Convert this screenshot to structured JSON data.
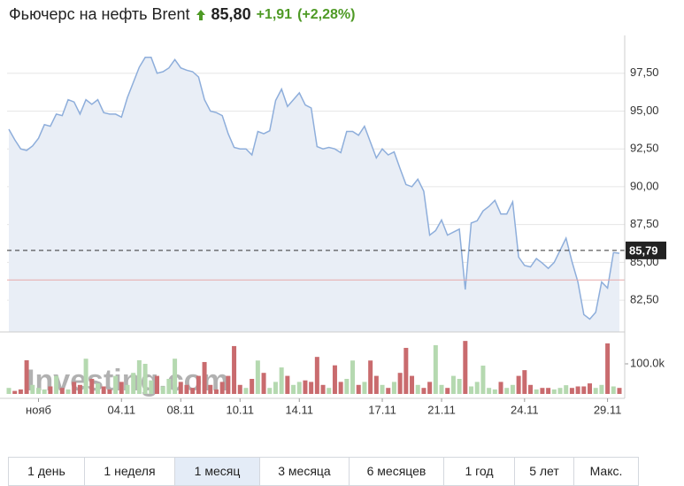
{
  "header": {
    "price": "85,80",
    "change": "+1,91",
    "change_pct": "(+2,28%)",
    "watermark": "Investing.com"
  },
  "chart_data": [
    {
      "type": "area",
      "title": "Фьючерс на нефть Brent",
      "color": "#8eaedb",
      "fill": "#e9eef6",
      "categories": [
        null,
        null,
        null,
        null,
        null,
        "нояб",
        null,
        null,
        null,
        null,
        null,
        null,
        null,
        null,
        null,
        null,
        null,
        null,
        null,
        "04.11",
        null,
        null,
        null,
        null,
        null,
        null,
        null,
        null,
        null,
        "08.11",
        null,
        null,
        null,
        null,
        null,
        null,
        null,
        null,
        null,
        "10.11",
        null,
        null,
        null,
        null,
        null,
        null,
        null,
        null,
        null,
        "14.11",
        null,
        null,
        null,
        null,
        null,
        null,
        null,
        null,
        null,
        null,
        null,
        null,
        null,
        "17.11",
        null,
        null,
        null,
        null,
        null,
        null,
        null,
        null,
        null,
        "21.11",
        null,
        null,
        null,
        null,
        null,
        null,
        null,
        null,
        null,
        null,
        null,
        null,
        null,
        "24.11",
        null,
        null,
        null,
        null,
        null,
        null,
        null,
        null,
        null,
        null,
        null,
        null,
        null,
        "29.11",
        null,
        null
      ],
      "values": [
        93.8,
        93.1,
        92.5,
        92.4,
        92.7,
        93.2,
        94.1,
        94.0,
        94.8,
        94.7,
        95.75,
        95.6,
        94.8,
        95.75,
        95.45,
        95.75,
        94.9,
        94.8,
        94.8,
        94.6,
        95.9,
        96.9,
        97.9,
        98.55,
        98.55,
        97.5,
        97.6,
        97.85,
        98.4,
        97.85,
        97.7,
        97.6,
        97.25,
        95.75,
        95.0,
        94.9,
        94.7,
        93.5,
        92.6,
        92.5,
        92.5,
        92.1,
        93.65,
        93.5,
        93.7,
        95.7,
        96.45,
        95.3,
        95.75,
        96.2,
        95.4,
        95.2,
        92.65,
        92.5,
        92.6,
        92.5,
        92.25,
        93.65,
        93.65,
        93.4,
        94.0,
        92.95,
        91.9,
        92.5,
        92.1,
        92.3,
        91.2,
        90.15,
        90.0,
        90.5,
        89.7,
        86.8,
        87.1,
        87.8,
        86.8,
        87.0,
        87.2,
        83.2,
        87.6,
        87.75,
        88.4,
        88.7,
        89.1,
        88.2,
        88.2,
        89.0,
        85.35,
        84.8,
        84.7,
        85.25,
        84.95,
        84.6,
        85.0,
        85.8,
        86.6,
        85.05,
        83.7,
        81.55,
        81.25,
        81.7,
        83.7,
        83.3,
        85.65,
        85.6
      ],
      "ylim": [
        80.4,
        100
      ],
      "yticks": [
        {
          "value": 82.5,
          "label": "82,50"
        },
        {
          "value": 85,
          "label": "85,00"
        },
        {
          "value": 87.5,
          "label": "87,50"
        },
        {
          "value": 90,
          "label": "90,00"
        },
        {
          "value": 92.5,
          "label": "92,50"
        },
        {
          "value": 95,
          "label": "95,00"
        },
        {
          "value": 97.5,
          "label": "97,50"
        }
      ],
      "grid": true,
      "last_value": {
        "value": 85.79,
        "label": "85,79"
      },
      "reference_line": {
        "value": 83.84,
        "color": "#e8a8a8"
      }
    },
    {
      "type": "bar",
      "up_color": "#b5d9b0",
      "down_color": "#c96b6e",
      "values": [
        20000,
        10000,
        15000,
        112000,
        30000,
        20000,
        15000,
        25000,
        60000,
        20000,
        15000,
        40000,
        30000,
        117000,
        50000,
        35000,
        25000,
        15000,
        60000,
        40000,
        30000,
        70000,
        112000,
        100000,
        45000,
        60000,
        25000,
        50000,
        117000,
        40000,
        30000,
        20000,
        60000,
        106000,
        30000,
        15000,
        40000,
        60000,
        159000,
        30000,
        20000,
        50000,
        111000,
        70000,
        20000,
        40000,
        88000,
        60000,
        30000,
        40000,
        45000,
        40000,
        123000,
        30000,
        20000,
        95000,
        40000,
        50000,
        111000,
        30000,
        40000,
        111000,
        60000,
        30000,
        20000,
        40000,
        70000,
        153000,
        60000,
        30000,
        20000,
        40000,
        162000,
        30000,
        20000,
        60000,
        50000,
        176000,
        25000,
        40000,
        94000,
        20000,
        15000,
        40000,
        20000,
        30000,
        60000,
        79000,
        30000,
        15000,
        20000,
        20000,
        15000,
        20000,
        29000,
        20000,
        25000,
        25000,
        35000,
        20000,
        30000,
        168000,
        25000,
        20000
      ],
      "ylim": [
        0,
        197000
      ],
      "yticks": [
        {
          "value": 100000,
          "label": "100.0k"
        }
      ]
    }
  ],
  "range_buttons": [
    "1 день",
    "1 неделя",
    "1 месяц",
    "3 месяца",
    "6 месяцев",
    "1 год",
    "5 лет",
    "Макс."
  ],
  "active_range": 2
}
